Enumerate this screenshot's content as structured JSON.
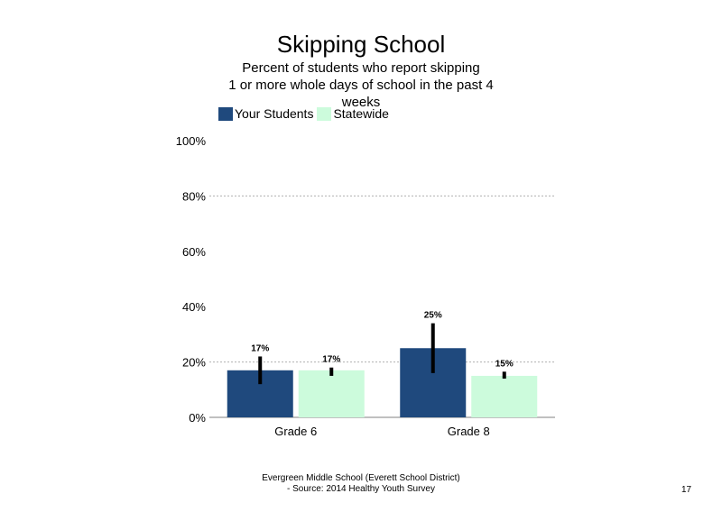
{
  "chart_data": {
    "type": "bar",
    "title": "Skipping School",
    "subtitle_lines": [
      "Percent of students who report skipping",
      "1 or more whole days of school in the past 4",
      "weeks"
    ],
    "categories": [
      "Grade 6",
      "Grade 8"
    ],
    "series": [
      {
        "name": "Your Students",
        "color": "#1f497d",
        "values": [
          17,
          25
        ],
        "error_low": [
          12,
          16
        ],
        "error_high": [
          22,
          34
        ],
        "labels": [
          "17%",
          "25%"
        ]
      },
      {
        "name": "Statewide",
        "color": "#ccfbdc",
        "values": [
          17,
          15
        ],
        "error_low": [
          15,
          14
        ],
        "error_high": [
          18,
          16.5
        ],
        "labels": [
          "17%",
          "15%"
        ]
      }
    ],
    "yticks": [
      "0%",
      "20%",
      "40%",
      "60%",
      "80%",
      "100%"
    ],
    "ylim": [
      0,
      100
    ],
    "gridlines": [
      20,
      80
    ],
    "legend_position": "top-left"
  },
  "footer": {
    "line1": "Evergreen Middle School (Everett School District)",
    "line2": "- Source: 2014 Healthy  Youth Survey"
  },
  "page_number": "17"
}
